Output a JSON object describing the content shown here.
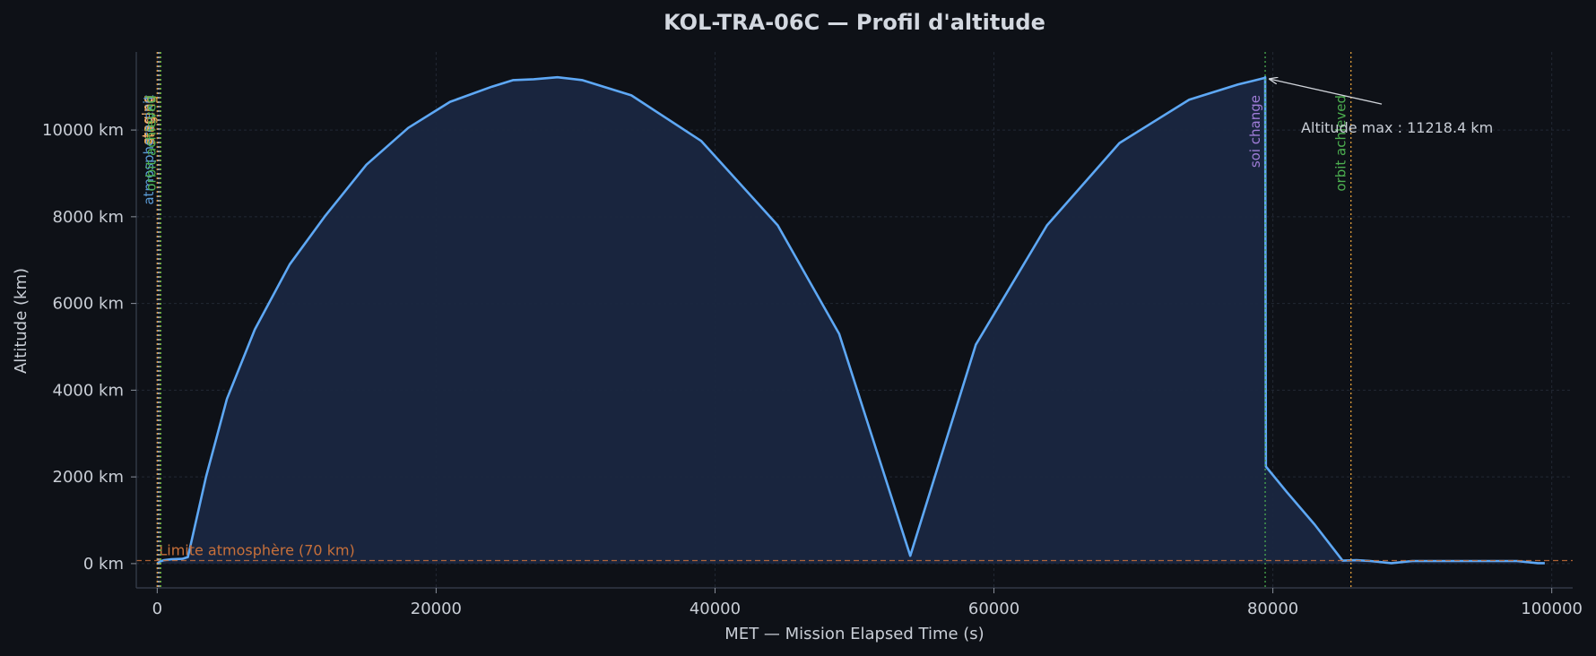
{
  "chart_data": {
    "type": "area",
    "title": "KOL-TRA-06C — Profil d'altitude",
    "xlabel": "MET — Mission Elapsed Time (s)",
    "ylabel": "Altitude (km)",
    "xlim": [
      -1500,
      101500
    ],
    "ylim": [
      -560,
      11800
    ],
    "x_ticks": [
      0,
      20000,
      40000,
      60000,
      80000,
      100000
    ],
    "x_tick_labels": [
      "0",
      "20000",
      "40000",
      "60000",
      "80000",
      "100000"
    ],
    "y_ticks": [
      0,
      2000,
      4000,
      6000,
      8000,
      10000
    ],
    "y_tick_labels": [
      "0 km",
      "2000 km",
      "4000 km",
      "6000 km",
      "8000 km",
      "10000 km"
    ],
    "grid": true,
    "series": [
      {
        "color": "#5ea8f5",
        "fill": "#1a2740",
        "x": [
          0,
          200,
          500,
          1000,
          1800,
          2200,
          3500,
          5000,
          7000,
          9500,
          12000,
          15000,
          18000,
          21000,
          24000,
          25500,
          27000,
          28700,
          30500,
          34000,
          39000,
          44500,
          48900,
          54000,
          58700,
          63800,
          69000,
          74000,
          77500,
          79400,
          79450,
          79500,
          81000,
          83000,
          85000,
          86000,
          87000,
          88500,
          90000,
          93000,
          97500,
          99000,
          99500
        ],
        "y": [
          0,
          50,
          80,
          100,
          110,
          150,
          2000,
          3800,
          5400,
          6900,
          8000,
          9200,
          10050,
          10650,
          11000,
          11150,
          11170,
          11218,
          11150,
          10800,
          9750,
          7800,
          5300,
          180,
          5050,
          7800,
          9700,
          10700,
          11050,
          11200,
          11218,
          2240,
          1650,
          900,
          70,
          80,
          60,
          10,
          60,
          60,
          60,
          10,
          10
        ]
      }
    ],
    "reference_lines": [
      {
        "axis": "y",
        "value": 70,
        "label": "Limite atmosphère (70 km)",
        "color": "#c8703a",
        "style": "dashed"
      }
    ],
    "event_lines": [
      {
        "x": 0,
        "label": "staging",
        "color": "#e8a33d"
      },
      {
        "x": 80,
        "label": "staging",
        "color": "#f2b5a0"
      },
      {
        "x": 120,
        "label": "atmosphere exit",
        "color": "#5b9bd5"
      },
      {
        "x": 200,
        "label": "staging",
        "color": "#d9a441"
      },
      {
        "x": 260,
        "label": "orbit achieved",
        "color": "#4caf50"
      },
      {
        "x": 79450,
        "label": "soi change",
        "color": "#4caf50",
        "label_color": "#a07dd8"
      },
      {
        "x": 85600,
        "label": "orbit achieved",
        "color": "#e8a33d",
        "label_color": "#4caf50"
      }
    ],
    "annotations": [
      {
        "text": "Altitude max : 11218.4 km",
        "x": 79450,
        "y": 11218
      }
    ]
  }
}
